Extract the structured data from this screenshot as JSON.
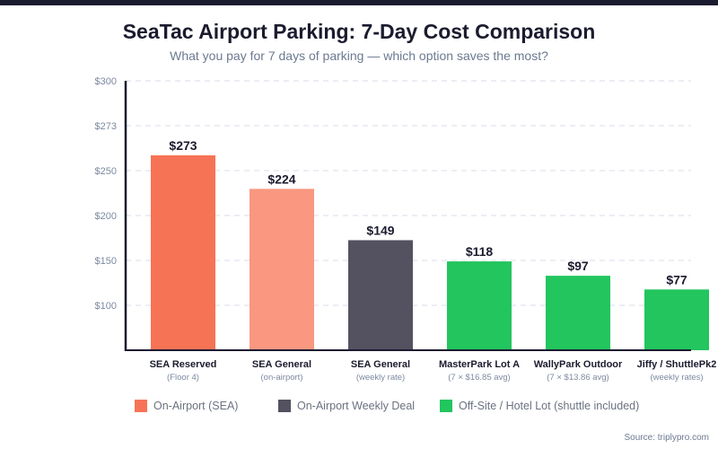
{
  "chart_data": {
    "type": "bar",
    "title": "SeaTac Airport Parking: 7-Day Cost Comparison",
    "subtitle": "What you pay for 7 days of parking — which option saves the most?",
    "xlabel": "",
    "ylabel": "",
    "yticks": [
      "$300",
      "$273",
      "$250",
      "$200",
      "$150",
      "$100"
    ],
    "grid": true,
    "legend_position": "bottom",
    "categories": [
      {
        "name": "SEA Reserved",
        "sub": "(Floor 4)",
        "value": 273,
        "label": "$273",
        "group": "on_airport"
      },
      {
        "name": "SEA General",
        "sub": "(on-airport)",
        "value": 224,
        "label": "$224",
        "group": "on_airport_light"
      },
      {
        "name": "SEA General",
        "sub": "(weekly rate)",
        "value": 149,
        "label": "$149",
        "group": "weekly"
      },
      {
        "name": "MasterPark Lot A",
        "sub": "(7 × $16.85 avg)",
        "value": 118,
        "label": "$118",
        "group": "offsite"
      },
      {
        "name": "WallyPark Outdoor",
        "sub": "(7 × $13.86 avg)",
        "value": 97,
        "label": "$97",
        "group": "offsite"
      },
      {
        "name": "Jiffy / ShuttlePk2",
        "sub": "(weekly rates)",
        "value": 77,
        "label": "$77",
        "group": "offsite"
      }
    ],
    "values": [
      273,
      224,
      149,
      118,
      97,
      77
    ],
    "colors": {
      "on_airport": "#f77356",
      "on_airport_light": "#f99780",
      "weekly": "#545260",
      "offsite": "#22c55e"
    },
    "legend": [
      {
        "label": "On-Airport (SEA)",
        "color": "#f77356"
      },
      {
        "label": "On-Airport Weekly Deal",
        "color": "#545260"
      },
      {
        "label": "Off-Site / Hotel Lot (shuttle included)",
        "color": "#22c55e"
      }
    ],
    "source": "Source: triplypro.com"
  }
}
